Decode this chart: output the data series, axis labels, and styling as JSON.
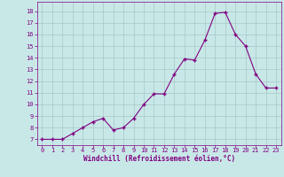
{
  "x": [
    0,
    1,
    2,
    3,
    4,
    5,
    6,
    7,
    8,
    9,
    10,
    11,
    12,
    13,
    14,
    15,
    16,
    17,
    18,
    19,
    20,
    21,
    22,
    23
  ],
  "y": [
    7,
    7,
    7,
    7.5,
    8,
    8.5,
    8.8,
    7.8,
    8,
    8.8,
    10,
    10.9,
    10.9,
    12.6,
    13.9,
    13.8,
    15.5,
    17.8,
    17.9,
    16,
    15,
    12.6,
    11.4,
    11.4
  ],
  "line_color": "#800080",
  "marker_color": "#800080",
  "bg_color": "#c8e8e8",
  "grid_color": "#a8c8c8",
  "xlabel": "Windchill (Refroidissement éolien,°C)",
  "xlabel_color": "#800080",
  "tick_color": "#800080",
  "ylim": [
    6.5,
    18.8
  ],
  "xlim": [
    -0.5,
    23.5
  ],
  "yticks": [
    7,
    8,
    9,
    10,
    11,
    12,
    13,
    14,
    15,
    16,
    17,
    18
  ],
  "xticks": [
    0,
    1,
    2,
    3,
    4,
    5,
    6,
    7,
    8,
    9,
    10,
    11,
    12,
    13,
    14,
    15,
    16,
    17,
    18,
    19,
    20,
    21,
    22,
    23
  ]
}
